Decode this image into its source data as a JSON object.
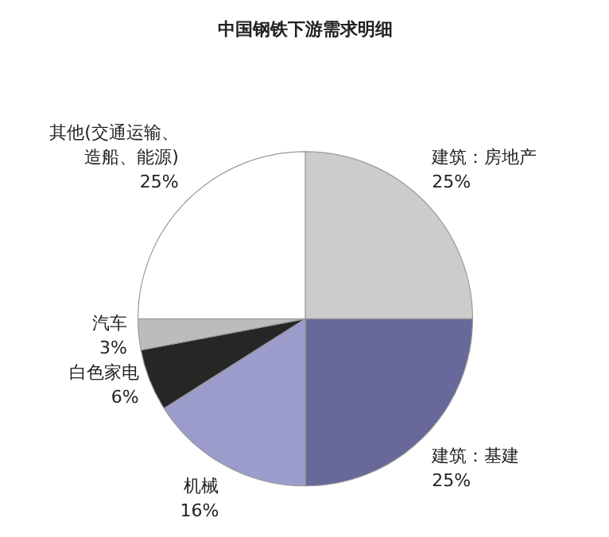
{
  "chart_data": {
    "type": "pie",
    "title": "中国钢铁下游需求明细",
    "categories": [
      "建筑：房地产",
      "建筑：基建",
      "机械",
      "白色家电",
      "汽车",
      "其他(交通运输、造船、能源)"
    ],
    "values": [
      25,
      25,
      16,
      6,
      3,
      25
    ],
    "colors": [
      "#cccccc",
      "#68689a",
      "#9b9bcc",
      "#262626",
      "#bcbcbc",
      "#ffffff"
    ],
    "value_labels": [
      "25%",
      "25%",
      "16%",
      "6%",
      "3%",
      "25%"
    ]
  }
}
